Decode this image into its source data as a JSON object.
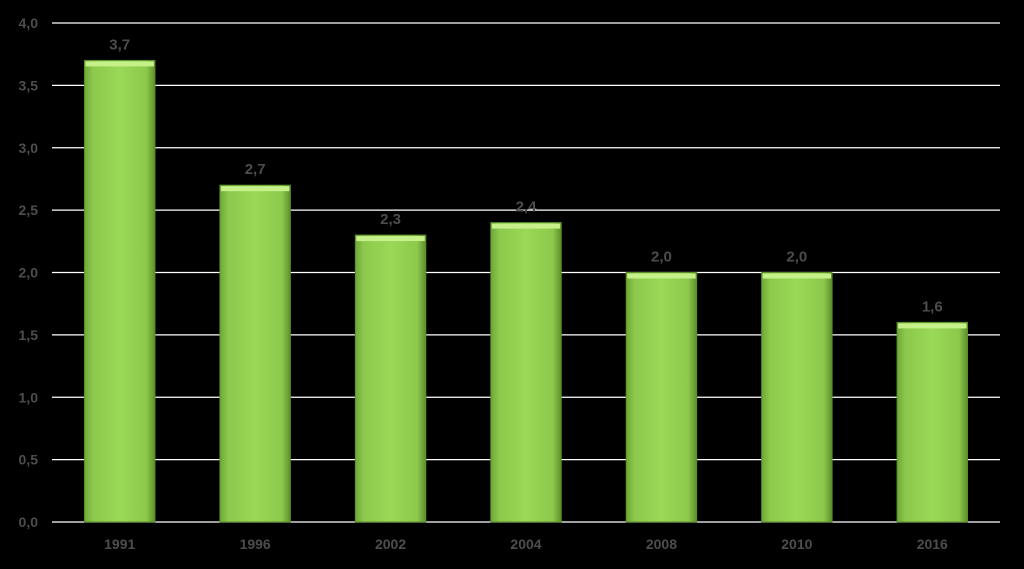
{
  "chart_data": {
    "type": "bar",
    "categories": [
      "1991",
      "1996",
      "2002",
      "2004",
      "2008",
      "2010",
      "2016"
    ],
    "values": [
      3.7,
      2.7,
      2.3,
      2.4,
      2.0,
      2.0,
      1.6
    ],
    "data_labels": [
      "3,7",
      "2,7",
      "2,3",
      "2,4",
      "2,0",
      "2,0",
      "1,6"
    ],
    "yticks": [
      0,
      0.5,
      1,
      1.5,
      2,
      2.5,
      3,
      3.5,
      4
    ],
    "ytick_labels": [
      "0,0",
      "0,5",
      "1,0",
      "1,5",
      "2,0",
      "2,5",
      "3,0",
      "3,5",
      "4,0"
    ],
    "ylim": [
      0,
      4
    ],
    "grid": true,
    "title": "",
    "xlabel": "",
    "ylabel": "",
    "colors": {
      "background": "#000000",
      "bar_fill": "#92d050",
      "bar_highlight": "#c6f08a",
      "bar_shadow": "#5e8f2a",
      "gridline": "#ffffff",
      "text": "#4d4d4d"
    }
  }
}
